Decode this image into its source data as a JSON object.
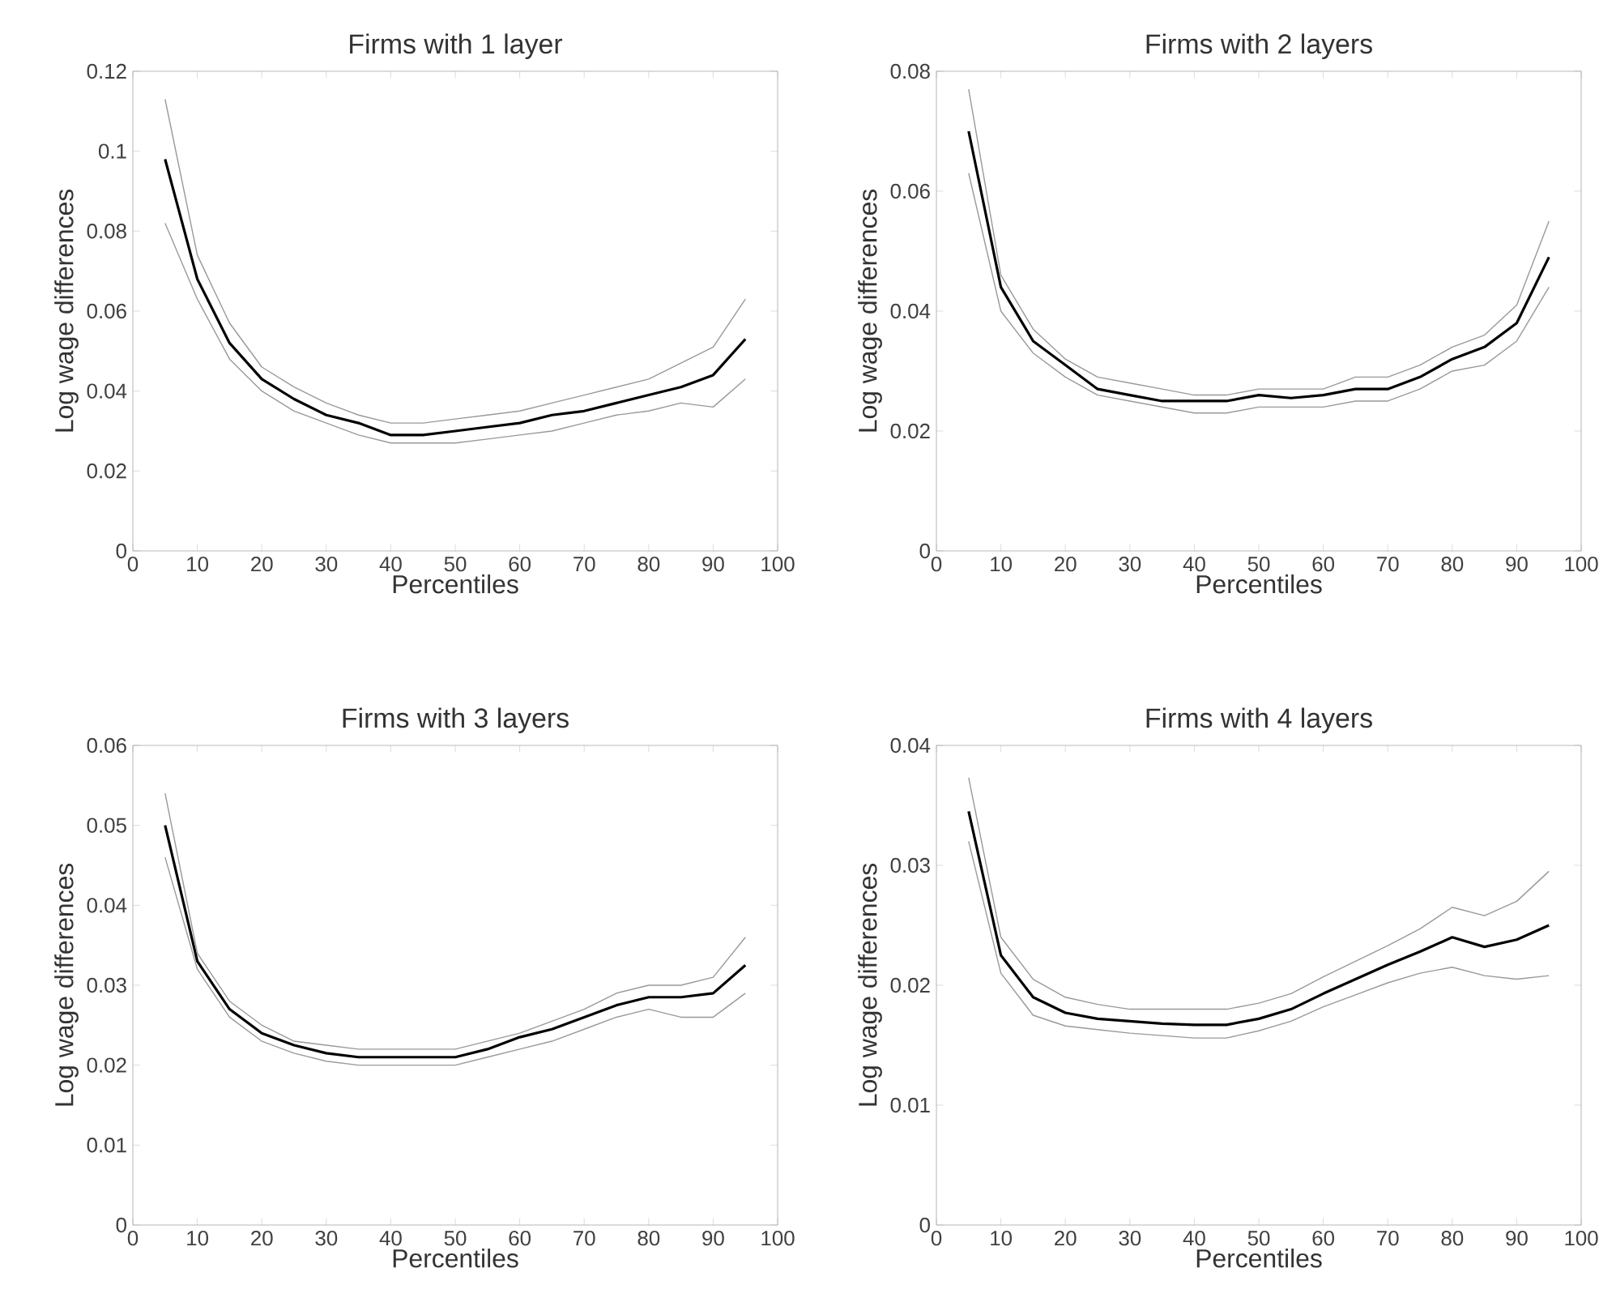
{
  "chart_data": [
    {
      "type": "line",
      "title": "Firms with 1 layer",
      "xlabel": "Percentiles",
      "ylabel": "Log wage differences",
      "x": [
        5,
        10,
        15,
        20,
        25,
        30,
        35,
        40,
        45,
        50,
        55,
        60,
        65,
        70,
        75,
        80,
        85,
        90,
        95
      ],
      "xlim": [
        0,
        100
      ],
      "xticks": [
        0,
        10,
        20,
        30,
        40,
        50,
        60,
        70,
        80,
        90,
        100
      ],
      "ylim": [
        0,
        0.12
      ],
      "yticks": [
        0,
        0.02,
        0.04,
        0.06,
        0.08,
        0.1,
        0.12
      ],
      "series": [
        {
          "color": "#000000",
          "values": [
            0.098,
            0.068,
            0.052,
            0.043,
            0.038,
            0.034,
            0.032,
            0.029,
            0.029,
            0.03,
            0.031,
            0.032,
            0.034,
            0.035,
            0.037,
            0.039,
            0.041,
            0.044,
            0.053
          ]
        },
        {
          "color": "#999999",
          "values": [
            0.113,
            0.074,
            0.057,
            0.046,
            0.041,
            0.037,
            0.034,
            0.032,
            0.032,
            0.033,
            0.034,
            0.035,
            0.037,
            0.039,
            0.041,
            0.043,
            0.047,
            0.051,
            0.063
          ]
        },
        {
          "color": "#999999",
          "values": [
            0.082,
            0.063,
            0.048,
            0.04,
            0.035,
            0.032,
            0.029,
            0.027,
            0.027,
            0.027,
            0.028,
            0.029,
            0.03,
            0.032,
            0.034,
            0.035,
            0.037,
            0.036,
            0.043
          ]
        }
      ]
    },
    {
      "type": "line",
      "title": "Firms with 2 layers",
      "xlabel": "Percentiles",
      "ylabel": "Log wage differences",
      "x": [
        5,
        10,
        15,
        20,
        25,
        30,
        35,
        40,
        45,
        50,
        55,
        60,
        65,
        70,
        75,
        80,
        85,
        90,
        95
      ],
      "xlim": [
        0,
        100
      ],
      "xticks": [
        0,
        10,
        20,
        30,
        40,
        50,
        60,
        70,
        80,
        90,
        100
      ],
      "ylim": [
        0,
        0.08
      ],
      "yticks": [
        0,
        0.02,
        0.04,
        0.06,
        0.08
      ],
      "series": [
        {
          "color": "#000000",
          "values": [
            0.07,
            0.044,
            0.035,
            0.031,
            0.027,
            0.026,
            0.025,
            0.025,
            0.025,
            0.026,
            0.0255,
            0.026,
            0.027,
            0.027,
            0.029,
            0.032,
            0.034,
            0.038,
            0.049
          ]
        },
        {
          "color": "#999999",
          "values": [
            0.077,
            0.046,
            0.037,
            0.032,
            0.029,
            0.028,
            0.027,
            0.026,
            0.026,
            0.027,
            0.027,
            0.027,
            0.029,
            0.029,
            0.031,
            0.034,
            0.036,
            0.041,
            0.055
          ]
        },
        {
          "color": "#999999",
          "values": [
            0.063,
            0.04,
            0.033,
            0.029,
            0.026,
            0.025,
            0.024,
            0.023,
            0.023,
            0.024,
            0.024,
            0.024,
            0.025,
            0.025,
            0.027,
            0.03,
            0.031,
            0.035,
            0.044
          ]
        }
      ]
    },
    {
      "type": "line",
      "title": "Firms with 3 layers",
      "xlabel": "Percentiles",
      "ylabel": "Log wage differences",
      "x": [
        5,
        10,
        15,
        20,
        25,
        30,
        35,
        40,
        45,
        50,
        55,
        60,
        65,
        70,
        75,
        80,
        85,
        90,
        95
      ],
      "xlim": [
        0,
        100
      ],
      "xticks": [
        0,
        10,
        20,
        30,
        40,
        50,
        60,
        70,
        80,
        90,
        100
      ],
      "ylim": [
        0,
        0.06
      ],
      "yticks": [
        0,
        0.01,
        0.02,
        0.03,
        0.04,
        0.05,
        0.06
      ],
      "series": [
        {
          "color": "#000000",
          "values": [
            0.05,
            0.033,
            0.027,
            0.024,
            0.0225,
            0.0215,
            0.021,
            0.021,
            0.021,
            0.021,
            0.022,
            0.0235,
            0.0245,
            0.026,
            0.0275,
            0.0285,
            0.0285,
            0.029,
            0.0325
          ]
        },
        {
          "color": "#999999",
          "values": [
            0.054,
            0.034,
            0.028,
            0.025,
            0.023,
            0.0225,
            0.022,
            0.022,
            0.022,
            0.022,
            0.023,
            0.024,
            0.0255,
            0.027,
            0.029,
            0.03,
            0.03,
            0.031,
            0.036
          ]
        },
        {
          "color": "#999999",
          "values": [
            0.046,
            0.032,
            0.026,
            0.023,
            0.0215,
            0.0205,
            0.02,
            0.02,
            0.02,
            0.02,
            0.021,
            0.022,
            0.023,
            0.0245,
            0.026,
            0.027,
            0.026,
            0.026,
            0.029
          ]
        }
      ]
    },
    {
      "type": "line",
      "title": "Firms with 4 layers",
      "xlabel": "Percentiles",
      "ylabel": "Log wage differences",
      "x": [
        5,
        10,
        15,
        20,
        25,
        30,
        35,
        40,
        45,
        50,
        55,
        60,
        65,
        70,
        75,
        80,
        85,
        90,
        95
      ],
      "xlim": [
        0,
        100
      ],
      "xticks": [
        0,
        10,
        20,
        30,
        40,
        50,
        60,
        70,
        80,
        90,
        100
      ],
      "ylim": [
        0,
        0.04
      ],
      "yticks": [
        0,
        0.01,
        0.02,
        0.03,
        0.04
      ],
      "series": [
        {
          "color": "#000000",
          "values": [
            0.0345,
            0.0225,
            0.019,
            0.0177,
            0.0172,
            0.017,
            0.0168,
            0.0167,
            0.0167,
            0.0172,
            0.018,
            0.0193,
            0.0205,
            0.0217,
            0.0228,
            0.024,
            0.0232,
            0.0238,
            0.025
          ]
        },
        {
          "color": "#999999",
          "values": [
            0.0373,
            0.024,
            0.0205,
            0.019,
            0.0184,
            0.018,
            0.018,
            0.018,
            0.018,
            0.0185,
            0.0193,
            0.0207,
            0.022,
            0.0233,
            0.0247,
            0.0265,
            0.0258,
            0.027,
            0.0295
          ]
        },
        {
          "color": "#999999",
          "values": [
            0.032,
            0.021,
            0.0175,
            0.0166,
            0.0163,
            0.016,
            0.0158,
            0.0156,
            0.0156,
            0.0162,
            0.017,
            0.0182,
            0.0192,
            0.0202,
            0.021,
            0.0215,
            0.0208,
            0.0205,
            0.0208
          ]
        }
      ]
    }
  ]
}
